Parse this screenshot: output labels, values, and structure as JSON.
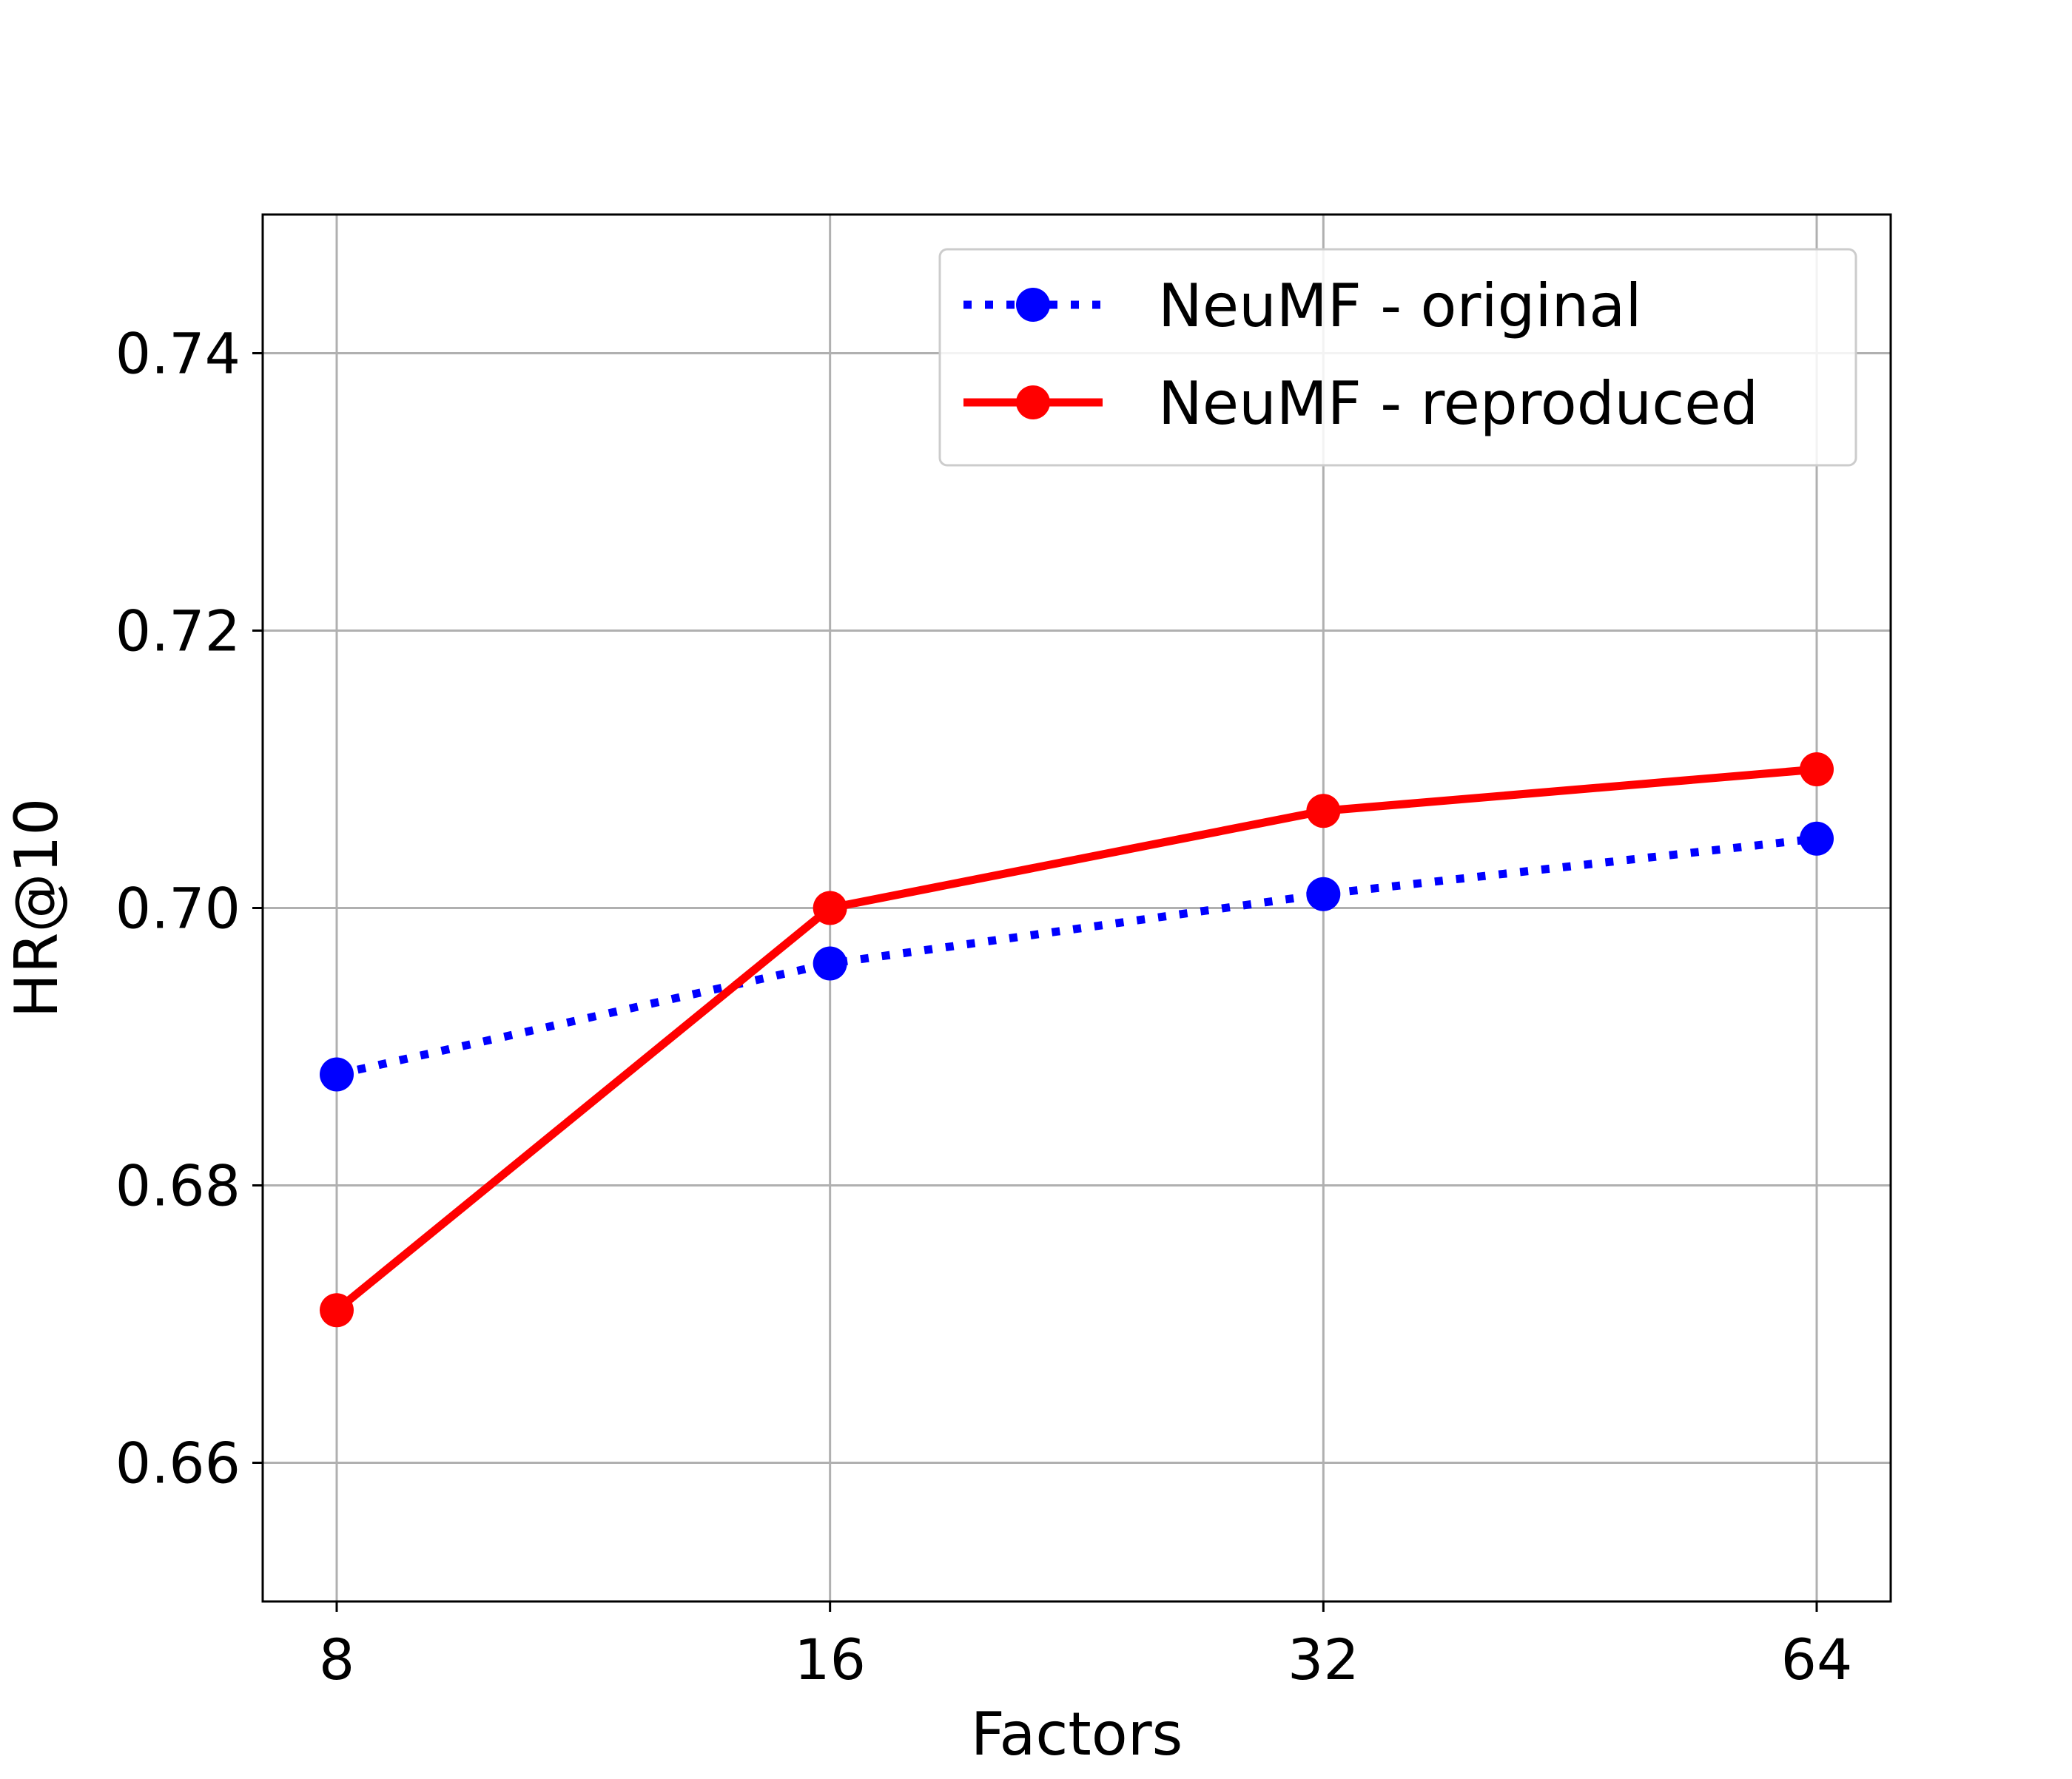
{
  "chart_data": {
    "type": "line",
    "x": [
      "8",
      "16",
      "32",
      "64"
    ],
    "series": [
      {
        "name": "NeuMF - original",
        "values": [
          0.688,
          0.696,
          0.701,
          0.705
        ],
        "color": "#0000ff",
        "line_style": "dotted",
        "marker": "circle"
      },
      {
        "name": "NeuMF - reproduced",
        "values": [
          0.671,
          0.7,
          0.707,
          0.71
        ],
        "color": "#ff0000",
        "line_style": "solid",
        "marker": "circle"
      }
    ],
    "title": "",
    "xlabel": "Factors",
    "ylabel": "HR@10",
    "ylim": [
      0.65,
      0.75
    ],
    "yticks": [
      "0.66",
      "0.68",
      "0.70",
      "0.72",
      "0.74"
    ],
    "grid": true,
    "legend_position": "upper right"
  }
}
